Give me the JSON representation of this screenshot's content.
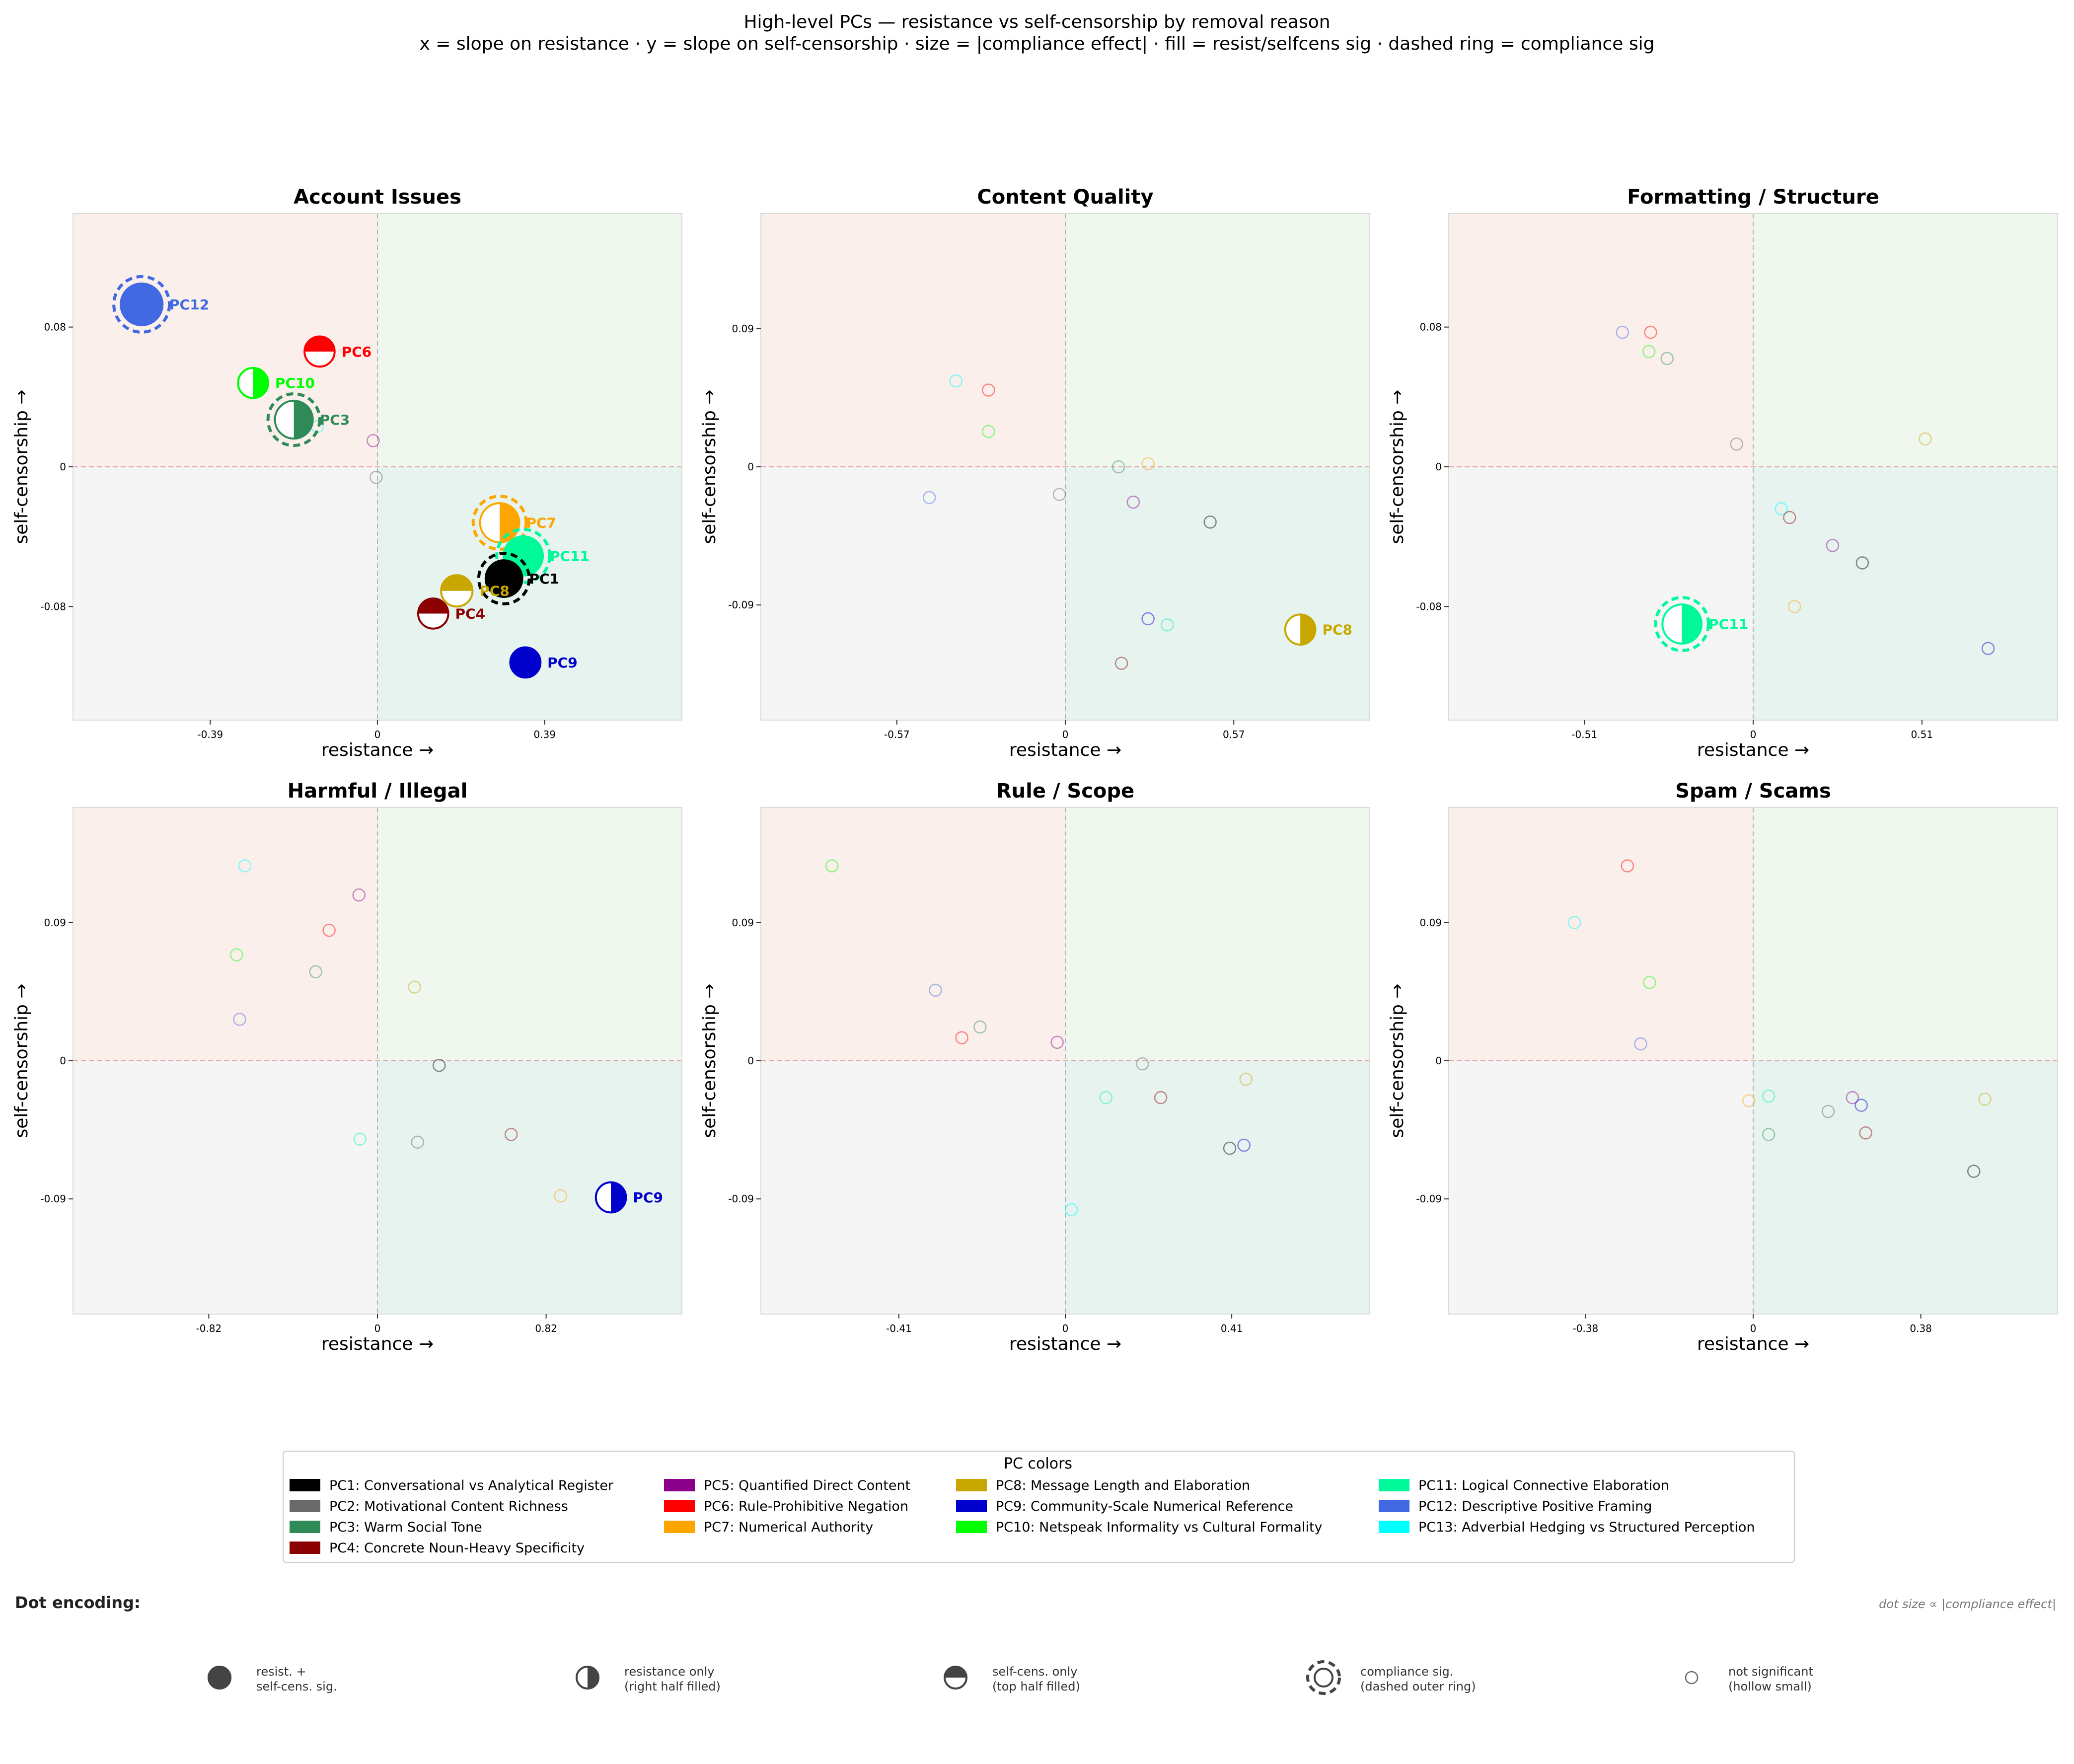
{
  "header": {
    "title": "High-level PCs — resistance vs self-censorship by removal reason",
    "subtitle": "x = slope on resistance  ·  y = slope on self-censorship  ·  size = |compliance effect|  ·  fill = resist/selfcens sig  ·  dashed ring = compliance sig"
  },
  "chart_data": [
    {
      "type": "scatter",
      "title": "Account Issues",
      "xlabel": "resistance →",
      "ylabel": "self-censorship →",
      "xlim": [
        -0.71,
        0.71
      ],
      "ylim": [
        -0.145,
        0.145
      ],
      "xticks": [
        -0.39,
        0,
        0.39
      ],
      "yticks": [
        -0.08,
        0,
        0.08
      ],
      "xtick_labels": [
        "-0.39",
        "0",
        "0.39"
      ],
      "ytick_labels": [
        "-0.08",
        "0",
        "0.08"
      ],
      "points": [
        {
          "pc": "PC12",
          "x": -0.55,
          "y": 0.093,
          "style": "both",
          "comp_sig": true,
          "size": 1.0,
          "label": "PC12"
        },
        {
          "pc": "PC6",
          "x": -0.135,
          "y": 0.066,
          "style": "selfcens",
          "comp_sig": false,
          "size": 0.55,
          "label": "PC6"
        },
        {
          "pc": "PC10",
          "x": -0.29,
          "y": 0.048,
          "style": "resist",
          "comp_sig": false,
          "size": 0.55,
          "label": "PC10"
        },
        {
          "pc": "PC3",
          "x": -0.195,
          "y": 0.027,
          "style": "resist",
          "comp_sig": true,
          "size": 0.85,
          "label": "PC3"
        },
        {
          "pc": "PC13",
          "x": -0.14,
          "y": 0.023,
          "style": "ns"
        },
        {
          "pc": "PC5",
          "x": -0.01,
          "y": 0.015,
          "style": "ns"
        },
        {
          "pc": "PC2",
          "x": -0.003,
          "y": -0.006,
          "style": "ns"
        },
        {
          "pc": "PC7",
          "x": 0.285,
          "y": -0.032,
          "style": "resist",
          "comp_sig": true,
          "size": 0.9,
          "label": "PC7"
        },
        {
          "pc": "PC11",
          "x": 0.34,
          "y": -0.051,
          "style": "both",
          "comp_sig": true,
          "size": 0.9,
          "label": "PC11"
        },
        {
          "pc": "PC1",
          "x": 0.295,
          "y": -0.064,
          "style": "both",
          "comp_sig": true,
          "size": 0.8,
          "label": "PC1"
        },
        {
          "pc": "PC8",
          "x": 0.185,
          "y": -0.071,
          "style": "selfcens",
          "comp_sig": false,
          "size": 0.6,
          "label": "PC8"
        },
        {
          "pc": "PC4",
          "x": 0.13,
          "y": -0.084,
          "style": "selfcens",
          "comp_sig": false,
          "size": 0.55,
          "label": "PC4"
        },
        {
          "pc": "PC9",
          "x": 0.345,
          "y": -0.112,
          "style": "both",
          "comp_sig": false,
          "size": 0.55,
          "label": "PC9"
        }
      ]
    },
    {
      "type": "scatter",
      "title": "Content Quality",
      "xlabel": "resistance →",
      "ylabel": "self-censorship →",
      "xlim": [
        -1.03,
        1.03
      ],
      "ylim": [
        -0.165,
        0.165
      ],
      "xticks": [
        -0.57,
        0,
        0.57
      ],
      "yticks": [
        -0.09,
        0,
        0.09
      ],
      "xtick_labels": [
        "-0.57",
        "0",
        "0.57"
      ],
      "ytick_labels": [
        "-0.09",
        "0",
        "0.09"
      ],
      "points": [
        {
          "pc": "PC13",
          "x": -0.37,
          "y": 0.056,
          "style": "ns"
        },
        {
          "pc": "PC6",
          "x": -0.26,
          "y": 0.05,
          "style": "ns"
        },
        {
          "pc": "PC10",
          "x": -0.26,
          "y": 0.023,
          "style": "ns"
        },
        {
          "pc": "PC12",
          "x": -0.46,
          "y": -0.02,
          "style": "ns"
        },
        {
          "pc": "PC2",
          "x": -0.02,
          "y": -0.018,
          "style": "ns"
        },
        {
          "pc": "PC3",
          "x": 0.18,
          "y": 0.0,
          "style": "ns"
        },
        {
          "pc": "PC7",
          "x": 0.28,
          "y": 0.002,
          "style": "ns"
        },
        {
          "pc": "PC5",
          "x": 0.23,
          "y": -0.023,
          "style": "ns"
        },
        {
          "pc": "PC1",
          "x": 0.49,
          "y": -0.036,
          "style": "ns"
        },
        {
          "pc": "PC9",
          "x": 0.28,
          "y": -0.099,
          "style": "ns"
        },
        {
          "pc": "PC11",
          "x": 0.345,
          "y": -0.103,
          "style": "ns"
        },
        {
          "pc": "PC4",
          "x": 0.19,
          "y": -0.128,
          "style": "ns"
        },
        {
          "pc": "PC8",
          "x": 0.795,
          "y": -0.106,
          "style": "resist",
          "comp_sig": false,
          "size": 0.55,
          "label": "PC8"
        }
      ]
    },
    {
      "type": "scatter",
      "title": "Formatting / Structure",
      "xlabel": "resistance →",
      "ylabel": "self-censorship →",
      "xlim": [
        -0.92,
        0.92
      ],
      "ylim": [
        -0.145,
        0.145
      ],
      "xticks": [
        -0.51,
        0,
        0.51
      ],
      "yticks": [
        -0.08,
        0,
        0.08
      ],
      "xtick_labels": [
        "-0.51",
        "0",
        "0.51"
      ],
      "ytick_labels": [
        "-0.08",
        "0",
        "0.08"
      ],
      "points": [
        {
          "pc": "PC12",
          "x": -0.395,
          "y": 0.077,
          "style": "ns"
        },
        {
          "pc": "PC6",
          "x": -0.31,
          "y": 0.077,
          "style": "ns"
        },
        {
          "pc": "PC10",
          "x": -0.315,
          "y": 0.066,
          "style": "ns"
        },
        {
          "pc": "PC3",
          "x": -0.26,
          "y": 0.062,
          "style": "ns"
        },
        {
          "pc": "PC2",
          "x": -0.05,
          "y": 0.013,
          "style": "ns"
        },
        {
          "pc": "PC8",
          "x": 0.52,
          "y": 0.016,
          "style": "ns"
        },
        {
          "pc": "PC13",
          "x": 0.085,
          "y": -0.024,
          "style": "ns"
        },
        {
          "pc": "PC4",
          "x": 0.11,
          "y": -0.029,
          "style": "ns"
        },
        {
          "pc": "PC5",
          "x": 0.24,
          "y": -0.045,
          "style": "ns"
        },
        {
          "pc": "PC1",
          "x": 0.33,
          "y": -0.055,
          "style": "ns"
        },
        {
          "pc": "PC7",
          "x": 0.125,
          "y": -0.08,
          "style": "ns"
        },
        {
          "pc": "PC9",
          "x": 0.71,
          "y": -0.104,
          "style": "ns"
        },
        {
          "pc": "PC11",
          "x": -0.215,
          "y": -0.09,
          "style": "resist",
          "comp_sig": true,
          "size": 0.9,
          "label": "PC11"
        }
      ]
    },
    {
      "type": "scatter",
      "title": "Harmful / Illegal",
      "xlabel": "resistance →",
      "ylabel": "self-censorship →",
      "xlim": [
        -1.48,
        1.48
      ],
      "ylim": [
        -0.165,
        0.165
      ],
      "xticks": [
        -0.82,
        0,
        0.82
      ],
      "yticks": [
        -0.09,
        0,
        0.09
      ],
      "xtick_labels": [
        "-0.82",
        "0",
        "0.82"
      ],
      "ytick_labels": [
        "-0.09",
        "0",
        "0.09"
      ],
      "points": [
        {
          "pc": "PC13",
          "x": -0.645,
          "y": 0.127,
          "style": "ns"
        },
        {
          "pc": "PC5",
          "x": -0.09,
          "y": 0.108,
          "style": "ns"
        },
        {
          "pc": "PC6",
          "x": -0.235,
          "y": 0.085,
          "style": "ns"
        },
        {
          "pc": "PC10",
          "x": -0.685,
          "y": 0.069,
          "style": "ns"
        },
        {
          "pc": "PC3",
          "x": -0.3,
          "y": 0.058,
          "style": "ns"
        },
        {
          "pc": "PC12",
          "x": -0.67,
          "y": 0.027,
          "style": "ns"
        },
        {
          "pc": "PC8",
          "x": 0.18,
          "y": 0.048,
          "style": "ns"
        },
        {
          "pc": "PC1",
          "x": 0.3,
          "y": -0.003,
          "style": "ns"
        },
        {
          "pc": "PC11",
          "x": -0.085,
          "y": -0.051,
          "style": "ns"
        },
        {
          "pc": "PC2",
          "x": 0.195,
          "y": -0.053,
          "style": "ns"
        },
        {
          "pc": "PC4",
          "x": 0.65,
          "y": -0.048,
          "style": "ns"
        },
        {
          "pc": "PC7",
          "x": 0.89,
          "y": -0.088,
          "style": "ns"
        },
        {
          "pc": "PC9",
          "x": 1.135,
          "y": -0.089,
          "style": "resist",
          "comp_sig": false,
          "size": 0.55,
          "label": "PC9"
        }
      ]
    },
    {
      "type": "scatter",
      "title": "Rule / Scope",
      "xlabel": "resistance →",
      "ylabel": "self-censorship →",
      "xlim": [
        -0.75,
        0.75
      ],
      "ylim": [
        -0.165,
        0.165
      ],
      "xticks": [
        -0.41,
        0,
        0.41
      ],
      "yticks": [
        -0.09,
        0,
        0.09
      ],
      "xtick_labels": [
        "-0.41",
        "0",
        "0.41"
      ],
      "ytick_labels": [
        "-0.09",
        "0",
        "0.09"
      ],
      "points": [
        {
          "pc": "PC10",
          "x": -0.575,
          "y": 0.127,
          "style": "ns"
        },
        {
          "pc": "PC12",
          "x": -0.32,
          "y": 0.046,
          "style": "ns"
        },
        {
          "pc": "PC3",
          "x": -0.21,
          "y": 0.022,
          "style": "ns"
        },
        {
          "pc": "PC6",
          "x": -0.255,
          "y": 0.015,
          "style": "ns"
        },
        {
          "pc": "PC5",
          "x": -0.02,
          "y": 0.012,
          "style": "ns"
        },
        {
          "pc": "PC2",
          "x": 0.19,
          "y": -0.002,
          "style": "ns"
        },
        {
          "pc": "PC8",
          "x": 0.445,
          "y": -0.012,
          "style": "ns"
        },
        {
          "pc": "PC11",
          "x": 0.1,
          "y": -0.024,
          "style": "ns"
        },
        {
          "pc": "PC4",
          "x": 0.235,
          "y": -0.024,
          "style": "ns"
        },
        {
          "pc": "PC1",
          "x": 0.405,
          "y": -0.057,
          "style": "ns"
        },
        {
          "pc": "PC9",
          "x": 0.44,
          "y": -0.055,
          "style": "ns"
        },
        {
          "pc": "PC13",
          "x": 0.015,
          "y": -0.097,
          "style": "ns"
        }
      ]
    },
    {
      "type": "scatter",
      "title": "Spam / Scams",
      "xlabel": "resistance →",
      "ylabel": "self-censorship →",
      "xlim": [
        -0.69,
        0.69
      ],
      "ylim": [
        -0.165,
        0.165
      ],
      "xticks": [
        -0.38,
        0,
        0.38
      ],
      "yticks": [
        -0.09,
        0,
        0.09
      ],
      "xtick_labels": [
        "-0.38",
        "0",
        "0.38"
      ],
      "ytick_labels": [
        "-0.09",
        "0",
        "0.09"
      ],
      "points": [
        {
          "pc": "PC6",
          "x": -0.285,
          "y": 0.127,
          "style": "ns"
        },
        {
          "pc": "PC13",
          "x": -0.405,
          "y": 0.09,
          "style": "ns"
        },
        {
          "pc": "PC10",
          "x": -0.235,
          "y": 0.051,
          "style": "ns"
        },
        {
          "pc": "PC12",
          "x": -0.255,
          "y": 0.011,
          "style": "ns"
        },
        {
          "pc": "PC7",
          "x": -0.01,
          "y": -0.026,
          "style": "ns"
        },
        {
          "pc": "PC11",
          "x": 0.035,
          "y": -0.023,
          "style": "ns"
        },
        {
          "pc": "PC3",
          "x": 0.035,
          "y": -0.048,
          "style": "ns"
        },
        {
          "pc": "PC2",
          "x": 0.17,
          "y": -0.033,
          "style": "ns"
        },
        {
          "pc": "PC5",
          "x": 0.225,
          "y": -0.024,
          "style": "ns"
        },
        {
          "pc": "PC9",
          "x": 0.245,
          "y": -0.029,
          "style": "ns"
        },
        {
          "pc": "PC4",
          "x": 0.255,
          "y": -0.047,
          "style": "ns"
        },
        {
          "pc": "PC8",
          "x": 0.525,
          "y": -0.025,
          "style": "ns"
        },
        {
          "pc": "PC1",
          "x": 0.5,
          "y": -0.072,
          "style": "ns"
        }
      ]
    }
  ],
  "pc_legend": {
    "title": "PC colors",
    "items": [
      {
        "pc": "PC1",
        "label": "PC1: Conversational vs Analytical Register",
        "color": "#000000"
      },
      {
        "pc": "PC2",
        "label": "PC2: Motivational Content Richness",
        "color": "#696969"
      },
      {
        "pc": "PC3",
        "label": "PC3: Warm Social Tone",
        "color": "#2e8b57"
      },
      {
        "pc": "PC4",
        "label": "PC4: Concrete Noun-Heavy Specificity",
        "color": "#8b0000"
      },
      {
        "pc": "PC5",
        "label": "PC5: Quantified Direct Content",
        "color": "#8b008b"
      },
      {
        "pc": "PC6",
        "label": "PC6: Rule-Prohibitive Negation",
        "color": "#ff0000"
      },
      {
        "pc": "PC7",
        "label": "PC7: Numerical Authority",
        "color": "#ffa500"
      },
      {
        "pc": "PC8",
        "label": "PC8: Message Length and Elaboration",
        "color": "#c8a800"
      },
      {
        "pc": "PC9",
        "label": "PC9: Community-Scale Numerical Reference",
        "color": "#0000cd"
      },
      {
        "pc": "PC10",
        "label": "PC10: Netspeak Informality vs Cultural Formality",
        "color": "#00ff00"
      },
      {
        "pc": "PC11",
        "label": "PC11: Logical Connective Elaboration",
        "color": "#00fa9a"
      },
      {
        "pc": "PC12",
        "label": "PC12: Descriptive Positive Framing",
        "color": "#4169e1"
      },
      {
        "pc": "PC13",
        "label": "PC13: Adverbial Hedging vs Structured Perception",
        "color": "#00ffff"
      }
    ]
  },
  "dot_encoding": {
    "title": "Dot encoding:",
    "note": "dot size ∝ |compliance effect|",
    "items": [
      {
        "key": "both",
        "line1": "resist. +",
        "line2": "self-cens. sig."
      },
      {
        "key": "resist",
        "line1": "resistance only",
        "line2": "(right half filled)"
      },
      {
        "key": "selfcens",
        "line1": "self-cens. only",
        "line2": "(top half filled)"
      },
      {
        "key": "comp",
        "line1": "compliance sig.",
        "line2": "(dashed outer ring)"
      },
      {
        "key": "ns",
        "line1": "not significant",
        "line2": "(hollow small)"
      }
    ]
  },
  "colors": {
    "quadrant_top_left": "#fbefec",
    "quadrant_top_right": "#eff7ee",
    "quadrant_bottom_left": "#f5f5f5",
    "quadrant_bottom_right": "#e6f3ee",
    "encoding_gray": "#444444"
  }
}
